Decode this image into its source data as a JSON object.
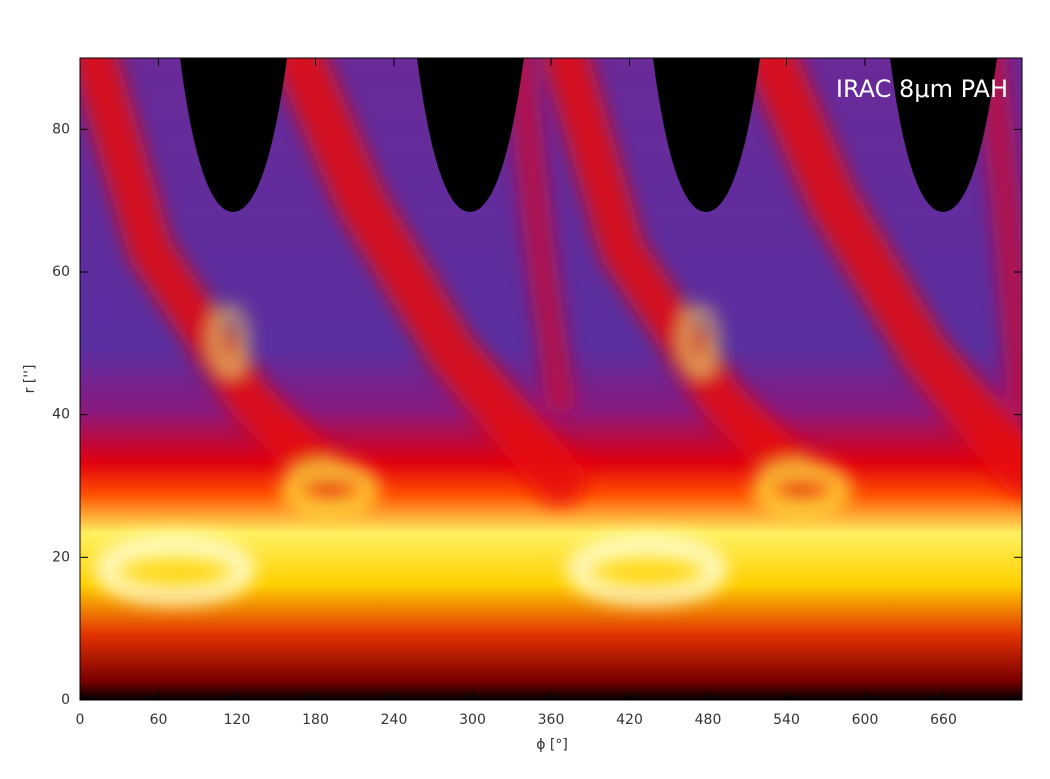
{
  "chart_data": {
    "type": "heatmap",
    "annotation": "IRAC 8μm PAH",
    "x_label": "ϕ [°]",
    "y_label": "r ['']",
    "xlim": [
      0,
      720
    ],
    "ylim": [
      0,
      90
    ],
    "xticks": [
      0,
      60,
      120,
      180,
      240,
      300,
      360,
      420,
      480,
      540,
      600,
      660
    ],
    "yticks": [
      0,
      20,
      40,
      60,
      80
    ],
    "colormap": [
      "#000000",
      "#b00000",
      "#ff2000",
      "#ffd800",
      "#ffffc0",
      "#5a2fa0"
    ]
  }
}
